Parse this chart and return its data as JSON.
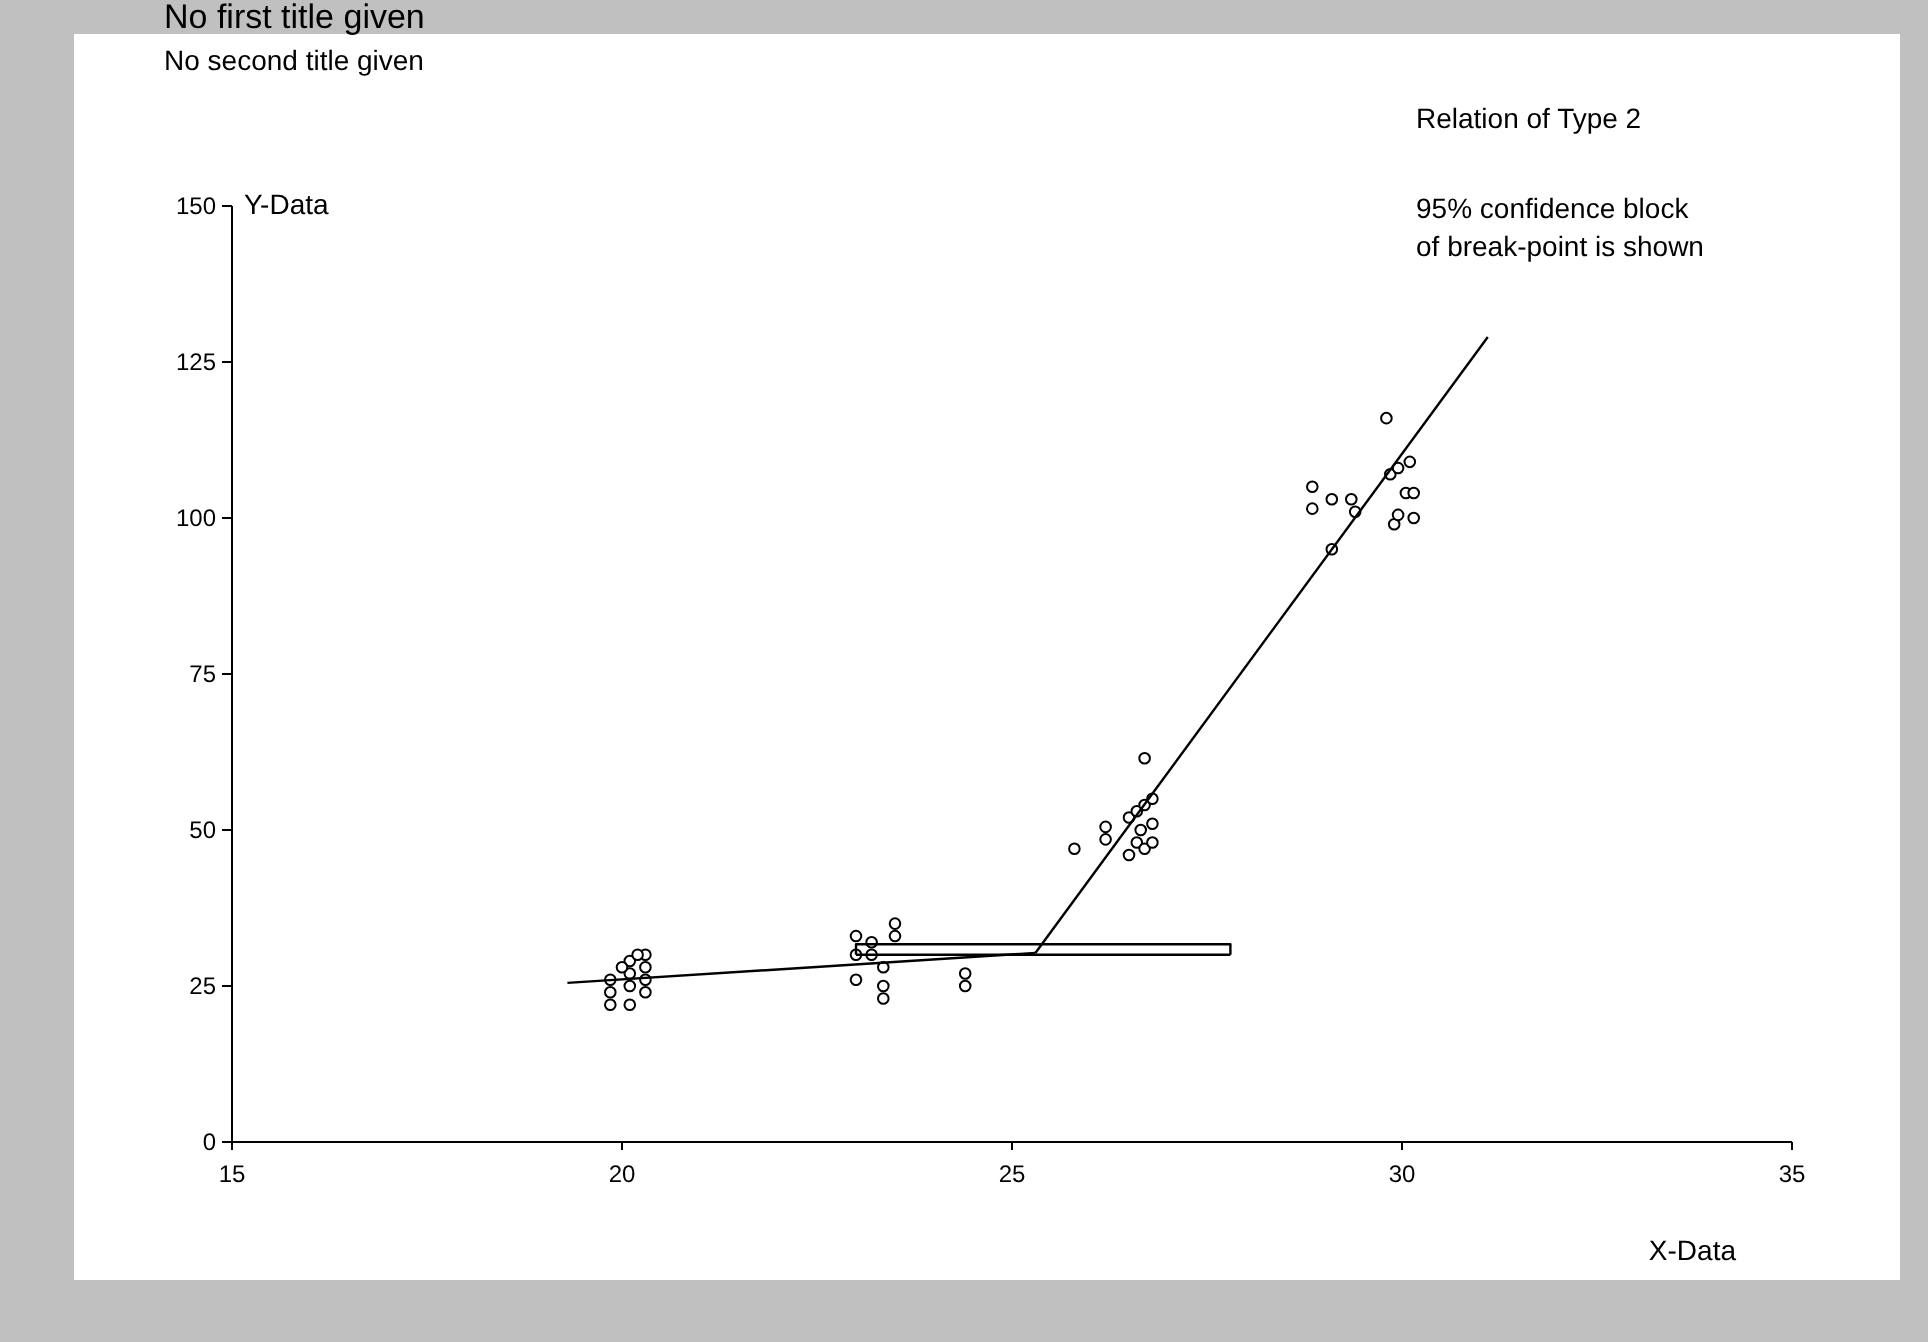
{
  "chart_data": {
    "type": "scatter",
    "title": "No first title given",
    "subtitle": "No second title given",
    "xlabel": "X-Data",
    "ylabel": "Y-Data",
    "annotations": [
      "Relation of Type 2",
      "95% confidence block\nof break-point is shown"
    ],
    "xlim": [
      15,
      35
    ],
    "xticks": [
      15,
      20,
      25,
      30,
      35
    ],
    "ylim": [
      0,
      150
    ],
    "yticks": [
      0,
      25,
      50,
      75,
      100,
      125,
      150
    ],
    "grid": false,
    "series": [
      {
        "marker": "circle",
        "color": "#000000",
        "x": [
          19.85,
          19.85,
          19.85,
          20.1,
          20.1,
          20.1,
          20.1,
          20.3,
          20.3,
          20.3,
          20.3,
          20.0,
          20.2,
          23.0,
          23.0,
          23.0,
          23.2,
          23.2,
          23.35,
          23.35,
          23.35,
          23.5,
          23.5,
          24.4,
          24.4,
          25.8,
          26.2,
          26.2,
          26.5,
          26.5,
          26.6,
          26.6,
          26.65,
          26.7,
          26.7,
          26.8,
          26.8,
          26.8,
          26.7,
          28.85,
          28.85,
          29.1,
          29.35,
          29.4,
          29.1,
          29.8,
          29.85,
          29.95,
          29.9,
          29.95,
          30.1,
          30.05,
          30.15,
          30.15
        ],
        "values": [
          22,
          24,
          26,
          22,
          25,
          27,
          29,
          24,
          26,
          28,
          30,
          28,
          30,
          33,
          30,
          26,
          32,
          30,
          28,
          25,
          23,
          35,
          33,
          27,
          25,
          47,
          50.5,
          48.5,
          46,
          52,
          48,
          53,
          50,
          54,
          47,
          48,
          51,
          55,
          61.5,
          105,
          101.5,
          103,
          103,
          101,
          95,
          116,
          107,
          108,
          99,
          100.5,
          109,
          104,
          104,
          100
        ]
      },
      {
        "type": "line",
        "marker": "none",
        "color": "#000000",
        "x": [
          19.3,
          25.3
        ],
        "values": [
          25.5,
          30.3
        ]
      },
      {
        "type": "line",
        "marker": "none",
        "color": "#000000",
        "x": [
          25.3,
          31.1
        ],
        "values": [
          30.3,
          129
        ]
      },
      {
        "type": "line",
        "marker": "none",
        "color": "#000000",
        "x": [
          23.0,
          23.0,
          27.8,
          27.8
        ],
        "values": [
          30,
          31.7,
          31.7,
          30
        ]
      },
      {
        "type": "line",
        "marker": "none",
        "color": "#000000",
        "x": [
          23.0,
          27.8
        ],
        "values": [
          30,
          30
        ]
      }
    ]
  }
}
